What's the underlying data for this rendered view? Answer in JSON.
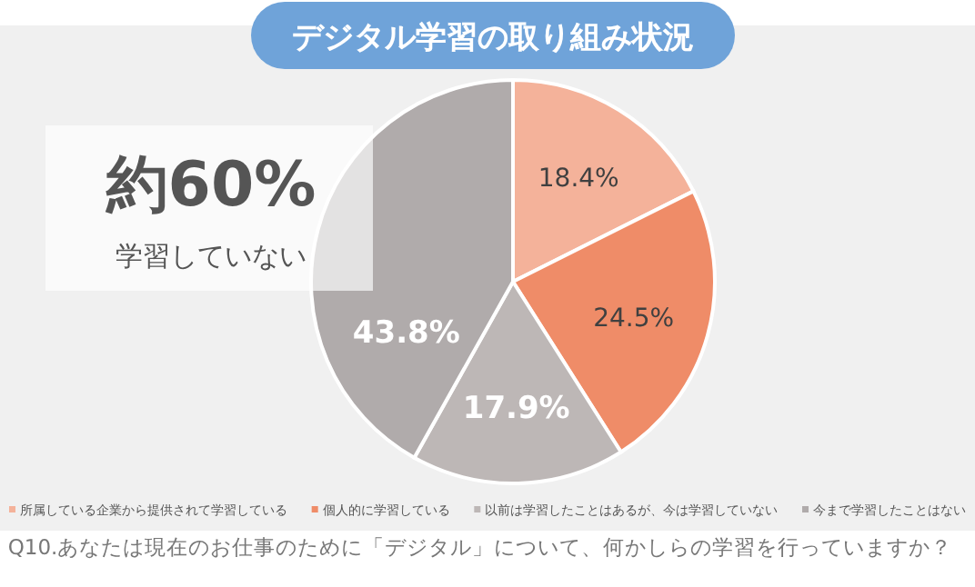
{
  "chart_data": {
    "type": "pie",
    "title": "デジタル学習の取り組み状況",
    "categories": [
      "所属している企業から提供されて学習している",
      "個人的に学習している",
      "以前は学習したことはあるが、今は学習していない",
      "今まで学習したことはない"
    ],
    "values": [
      18.4,
      24.5,
      17.9,
      43.8
    ],
    "value_labels": [
      "18.4%",
      "24.5%",
      "17.9%",
      "43.8%"
    ],
    "colors": [
      "#f4b29a",
      "#ef8c68",
      "#bdb7b6",
      "#b0abab"
    ],
    "legend": "bottom",
    "annotations": [
      "約60%",
      "学習していない",
      "Q10.あなたは現在のお仕事のために「デジタル」について、何かしらの学習を行っていますか？"
    ]
  }
}
